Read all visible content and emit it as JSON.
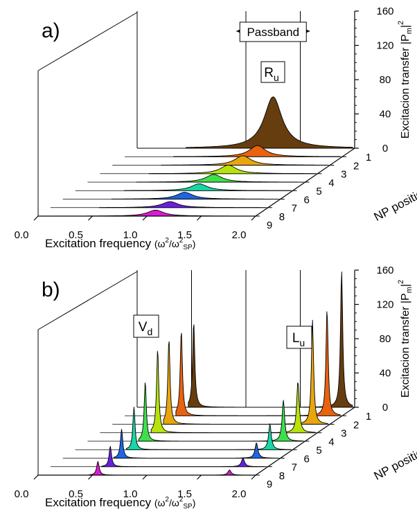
{
  "chart_data": [
    {
      "panel_label": "a)",
      "type": "area",
      "view": "3D waterfall of resonance curves",
      "xlabel": "Excitation frequency",
      "xlabel_units": {
        "open": "(ω",
        "sup1": "2",
        "mid": "/ω",
        "sup2": "2",
        "sub": "SP",
        "close": ")"
      },
      "x_ticks": [
        "0.0",
        "0.5",
        "1.0",
        "1.5",
        "2.0"
      ],
      "x_tick_values": [
        0.0,
        0.5,
        1.0,
        1.5,
        2.0
      ],
      "depth_label": "NP position",
      "depth_ticks": [
        "1",
        "2",
        "3",
        "4",
        "5",
        "6",
        "7",
        "8",
        "9"
      ],
      "zlabel_parts": {
        "main": "Excitacion transfer  |P",
        "sub": "m",
        "end": "|",
        "sup": "2"
      },
      "z_ticks": [
        "0",
        "40",
        "80",
        "120",
        "160"
      ],
      "z_range": [
        0,
        160
      ],
      "passband": {
        "label": "Passband",
        "range": [
          0.9,
          1.6
        ]
      },
      "annotation": {
        "base": "R",
        "sub": "u",
        "series_position": 1
      },
      "series": [
        {
          "position": 1,
          "peaks": [
            {
              "x": 1.25,
              "height": 60,
              "width": 0.1
            }
          ]
        },
        {
          "position": 2,
          "peaks": [
            {
              "x": 1.22,
              "height": 13,
              "width": 0.09
            }
          ]
        },
        {
          "position": 3,
          "peaks": [
            {
              "x": 1.2,
              "height": 11,
              "width": 0.09
            }
          ]
        },
        {
          "position": 4,
          "peaks": [
            {
              "x": 1.18,
              "height": 10,
              "width": 0.09
            }
          ]
        },
        {
          "position": 5,
          "peaks": [
            {
              "x": 1.16,
              "height": 9,
              "width": 0.09
            }
          ]
        },
        {
          "position": 6,
          "peaks": [
            {
              "x": 1.14,
              "height": 8,
              "width": 0.09
            }
          ]
        },
        {
          "position": 7,
          "peaks": [
            {
              "x": 1.12,
              "height": 8,
              "width": 0.09
            }
          ]
        },
        {
          "position": 8,
          "peaks": [
            {
              "x": 1.1,
              "height": 7,
              "width": 0.09
            }
          ]
        },
        {
          "position": 9,
          "peaks": [
            {
              "x": 1.08,
              "height": 7,
              "width": 0.09
            }
          ]
        }
      ]
    },
    {
      "panel_label": "b)",
      "type": "area",
      "view": "3D waterfall of resonance curves",
      "xlabel": "Excitation frequency",
      "xlabel_units": {
        "open": "(ω",
        "sup1": "2",
        "mid": "/ω",
        "sup2": "2",
        "sub": "SP",
        "close": ")"
      },
      "x_ticks": [
        "0.0",
        "0.5",
        "1.0",
        "1.5",
        "2.0"
      ],
      "x_tick_values": [
        0.0,
        0.5,
        1.0,
        1.5,
        2.0
      ],
      "depth_label": "NP position",
      "depth_ticks": [
        "1",
        "2",
        "3",
        "4",
        "5",
        "6",
        "7",
        "8",
        "9"
      ],
      "zlabel_parts": {
        "main": "Excitacion transfer  |P",
        "sub": "m",
        "end": "|",
        "sup": "2"
      },
      "z_ticks": [
        "0",
        "40",
        "80",
        "120",
        "160"
      ],
      "z_range": [
        0,
        160
      ],
      "annotations": [
        {
          "base": "V",
          "sub": "d",
          "near": "left peaks"
        },
        {
          "base": "L",
          "sub": "u",
          "near": "right peaks"
        }
      ],
      "series": [
        {
          "position": 1,
          "peaks": [
            {
              "x": 0.52,
              "height": 100,
              "width": 0.012
            },
            {
              "x": 1.88,
              "height": 160,
              "width": 0.012
            }
          ]
        },
        {
          "position": 2,
          "peaks": [
            {
              "x": 0.52,
              "height": 100,
              "width": 0.012
            },
            {
              "x": 1.86,
              "height": 125,
              "width": 0.012
            }
          ]
        },
        {
          "position": 3,
          "peaks": [
            {
              "x": 0.52,
              "height": 100,
              "width": 0.012
            },
            {
              "x": 1.84,
              "height": 122,
              "width": 0.012
            }
          ]
        },
        {
          "position": 4,
          "peaks": [
            {
              "x": 0.53,
              "height": 98,
              "width": 0.012
            },
            {
              "x": 1.82,
              "height": 60,
              "width": 0.014
            }
          ]
        },
        {
          "position": 5,
          "peaks": [
            {
              "x": 0.53,
              "height": 70,
              "width": 0.012
            },
            {
              "x": 1.8,
              "height": 48,
              "width": 0.014
            }
          ]
        },
        {
          "position": 6,
          "peaks": [
            {
              "x": 0.54,
              "height": 50,
              "width": 0.012
            },
            {
              "x": 1.79,
              "height": 30,
              "width": 0.015
            }
          ]
        },
        {
          "position": 7,
          "peaks": [
            {
              "x": 0.54,
              "height": 34,
              "width": 0.013
            },
            {
              "x": 1.78,
              "height": 18,
              "width": 0.016
            }
          ]
        },
        {
          "position": 8,
          "peaks": [
            {
              "x": 0.55,
              "height": 24,
              "width": 0.013
            },
            {
              "x": 1.77,
              "height": 10,
              "width": 0.017
            }
          ]
        },
        {
          "position": 9,
          "peaks": [
            {
              "x": 0.55,
              "height": 16,
              "width": 0.014
            },
            {
              "x": 1.76,
              "height": 6,
              "width": 0.018
            }
          ]
        }
      ]
    }
  ],
  "palette": [
    "#663d0f",
    "#e8620f",
    "#e8a60e",
    "#b8e20c",
    "#3ee04a",
    "#18d6a6",
    "#1f65e4",
    "#6a1fe0",
    "#d81cd2"
  ]
}
